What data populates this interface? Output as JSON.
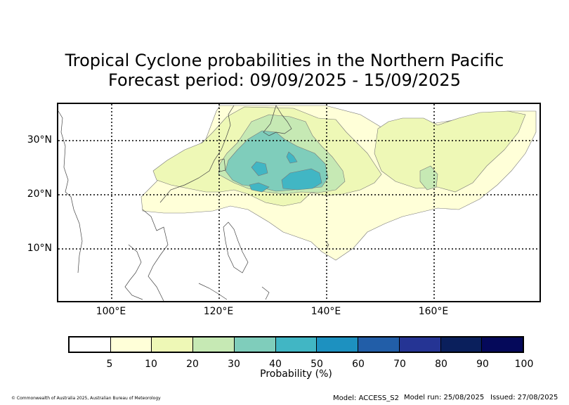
{
  "title": {
    "line1": "Tropical Cyclone probabilities in the Northern Pacific",
    "line2": "Forecast period: 09/09/2025 - 15/09/2025"
  },
  "map": {
    "lat_labels": [
      "30°N",
      "20°N",
      "10°N"
    ],
    "lon_labels": [
      "100°E",
      "120°E",
      "140°E",
      "160°E"
    ],
    "lon_range": [
      90,
      180
    ],
    "lat_range": [
      0,
      37
    ],
    "gridlines": "dotted"
  },
  "colorbar": {
    "label": "Probability (%)",
    "ticks": [
      "5",
      "10",
      "20",
      "30",
      "40",
      "50",
      "60",
      "70",
      "80",
      "90",
      "100"
    ],
    "colors": [
      "#ffffff",
      "#ffffd8",
      "#eef8b6",
      "#c6e9b4",
      "#7fcdbb",
      "#41b6c4",
      "#1d91c0",
      "#225ea8",
      "#253494",
      "#0a1f5c",
      "#05095a"
    ]
  },
  "footer": {
    "copyright": "© Commonwealth of Australia 2025, Australian Bureau of Meteorology",
    "model": "Model: ACCESS_S2",
    "model_run": "Model run: 25/08/2025",
    "issued": "Issued: 27/08/2025"
  }
}
